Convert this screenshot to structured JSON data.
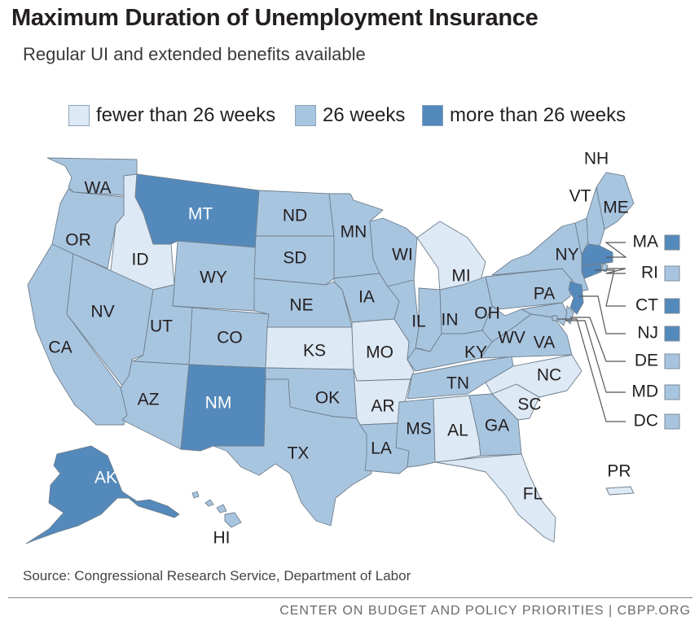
{
  "title": "Maximum Duration of Unemployment Insurance",
  "subtitle": "Regular UI and extended benefits available",
  "colors": {
    "fewer": "#dde9f4",
    "regular": "#a8c5e0",
    "more": "#5489bb",
    "border": "#6f7f8c"
  },
  "legend": [
    {
      "label": "fewer than 26 weeks",
      "category": "fewer"
    },
    {
      "label": "26 weeks",
      "category": "regular"
    },
    {
      "label": "more than 26 weeks",
      "category": "more"
    }
  ],
  "states": {
    "WA": "regular",
    "OR": "regular",
    "CA": "regular",
    "ID": "fewer",
    "NV": "regular",
    "MT": "more",
    "WY": "regular",
    "UT": "regular",
    "AZ": "regular",
    "CO": "regular",
    "NM": "more",
    "ND": "regular",
    "SD": "regular",
    "NE": "regular",
    "KS": "fewer",
    "OK": "regular",
    "TX": "regular",
    "MN": "regular",
    "IA": "regular",
    "MO": "fewer",
    "AR": "fewer",
    "LA": "regular",
    "WI": "regular",
    "IL": "regular",
    "MI": "fewer",
    "IN": "regular",
    "OH": "regular",
    "KY": "regular",
    "TN": "regular",
    "MS": "regular",
    "AL": "fewer",
    "GA": "regular",
    "FL": "fewer",
    "SC": "fewer",
    "NC": "fewer",
    "VA": "regular",
    "WV": "regular",
    "PA": "regular",
    "NY": "regular",
    "VT": "regular",
    "NH": "regular",
    "ME": "regular",
    "MA": "more",
    "RI": "regular",
    "CT": "more",
    "NJ": "more",
    "DE": "regular",
    "MD": "regular",
    "DC": "regular",
    "AK": "more",
    "HI": "regular",
    "PR": "fewer"
  },
  "state_labels": {
    "WA": "WA",
    "OR": "OR",
    "CA": "CA",
    "ID": "ID",
    "NV": "NV",
    "MT": "MT",
    "WY": "WY",
    "UT": "UT",
    "AZ": "AZ",
    "CO": "CO",
    "NM": "NM",
    "ND": "ND",
    "SD": "SD",
    "NE": "NE",
    "KS": "KS",
    "OK": "OK",
    "TX": "TX",
    "MN": "MN",
    "IA": "IA",
    "MO": "MO",
    "AR": "AR",
    "LA": "LA",
    "WI": "WI",
    "IL": "IL",
    "MI": "MI",
    "IN": "IN",
    "OH": "OH",
    "KY": "KY",
    "TN": "TN",
    "MS": "MS",
    "AL": "AL",
    "GA": "GA",
    "FL": "FL",
    "SC": "SC",
    "NC": "NC",
    "VA": "VA",
    "WV": "WV",
    "PA": "PA",
    "NY": "NY",
    "VT": "VT",
    "NH": "NH",
    "ME": "ME",
    "AK": "AK",
    "HI": "HI",
    "PR": "PR"
  },
  "callouts": [
    {
      "abbr": "MA",
      "label": "MA"
    },
    {
      "abbr": "RI",
      "label": "RI"
    },
    {
      "abbr": "CT",
      "label": "CT"
    },
    {
      "abbr": "NJ",
      "label": "NJ"
    },
    {
      "abbr": "DE",
      "label": "DE"
    },
    {
      "abbr": "MD",
      "label": "MD"
    },
    {
      "abbr": "DC",
      "label": "DC"
    }
  ],
  "source": "Source: Congressional Research Service, Department of Labor",
  "footer": "CENTER ON BUDGET AND POLICY PRIORITIES | CBPP.ORG"
}
